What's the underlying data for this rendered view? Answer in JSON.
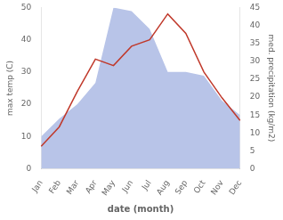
{
  "chart_data": {
    "type": "line",
    "categories": [
      "Jan",
      "Feb",
      "Mar",
      "Apr",
      "May",
      "Jun",
      "Jul",
      "Aug",
      "Sep",
      "Oct",
      "Nov",
      "Dec"
    ],
    "series": [
      {
        "type": "area",
        "color": "#b8c4e8",
        "axis": "y2",
        "values": [
          9,
          14,
          18,
          24,
          45,
          44,
          39,
          27,
          27,
          26,
          19,
          15
        ]
      },
      {
        "type": "line",
        "color": "#c0392b",
        "values": [
          7,
          13,
          24,
          34,
          32,
          38,
          40,
          48,
          42,
          30,
          22,
          15
        ]
      }
    ],
    "xlabel": "date (month)",
    "ylabel": "max temp (C)",
    "y2label": "med. precipitation (kg/m2)",
    "ylim": [
      0,
      50
    ],
    "yticks": [
      0,
      10,
      20,
      30,
      40,
      50
    ],
    "y2lim": [
      0,
      45
    ],
    "y2ticks": [
      0,
      5,
      10,
      15,
      20,
      25,
      30,
      35,
      40,
      45
    ],
    "grid": false
  }
}
